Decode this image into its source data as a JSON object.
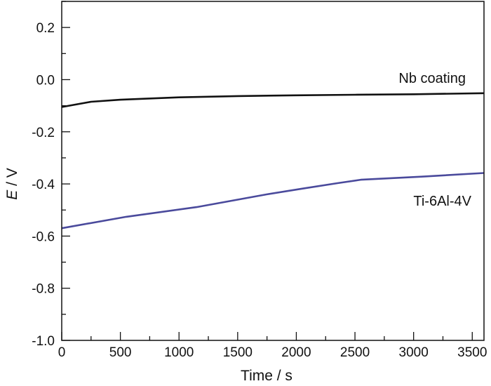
{
  "chart_data": {
    "type": "line",
    "xlabel": "Time / s",
    "ylabel_italic": "E",
    "ylabel_rest": " / V",
    "xlim": [
      0,
      3600
    ],
    "ylim": [
      -1.0,
      0.3
    ],
    "xticks": [
      0,
      500,
      1000,
      1500,
      2000,
      2500,
      3000,
      3500
    ],
    "xtick_labels": [
      "0",
      "500",
      "1000",
      "1500",
      "2000",
      "2500",
      "3000",
      "3500"
    ],
    "yticks": [
      -1.0,
      -0.8,
      -0.6,
      -0.4,
      -0.2,
      0.0,
      0.2
    ],
    "ytick_labels": [
      "-1.0",
      "-0.8",
      "-0.6",
      "-0.4",
      "-0.2",
      "0.0",
      "0.2"
    ],
    "grid": false,
    "series": [
      {
        "name": "Nb coating",
        "color": "#111111",
        "x": [
          0,
          250,
          500,
          1000,
          1500,
          2000,
          2500,
          3000,
          3600
        ],
        "y": [
          -0.105,
          -0.085,
          -0.077,
          -0.068,
          -0.063,
          -0.06,
          -0.058,
          -0.056,
          -0.052
        ]
      },
      {
        "name": "Ti-6Al-4V",
        "color": "#4a4a9c",
        "x": [
          0,
          550,
          1150,
          1750,
          2050,
          2350,
          2550,
          3070,
          3600
        ],
        "y": [
          -0.57,
          -0.526,
          -0.489,
          -0.44,
          -0.418,
          -0.397,
          -0.384,
          -0.372,
          -0.358
        ]
      }
    ]
  }
}
